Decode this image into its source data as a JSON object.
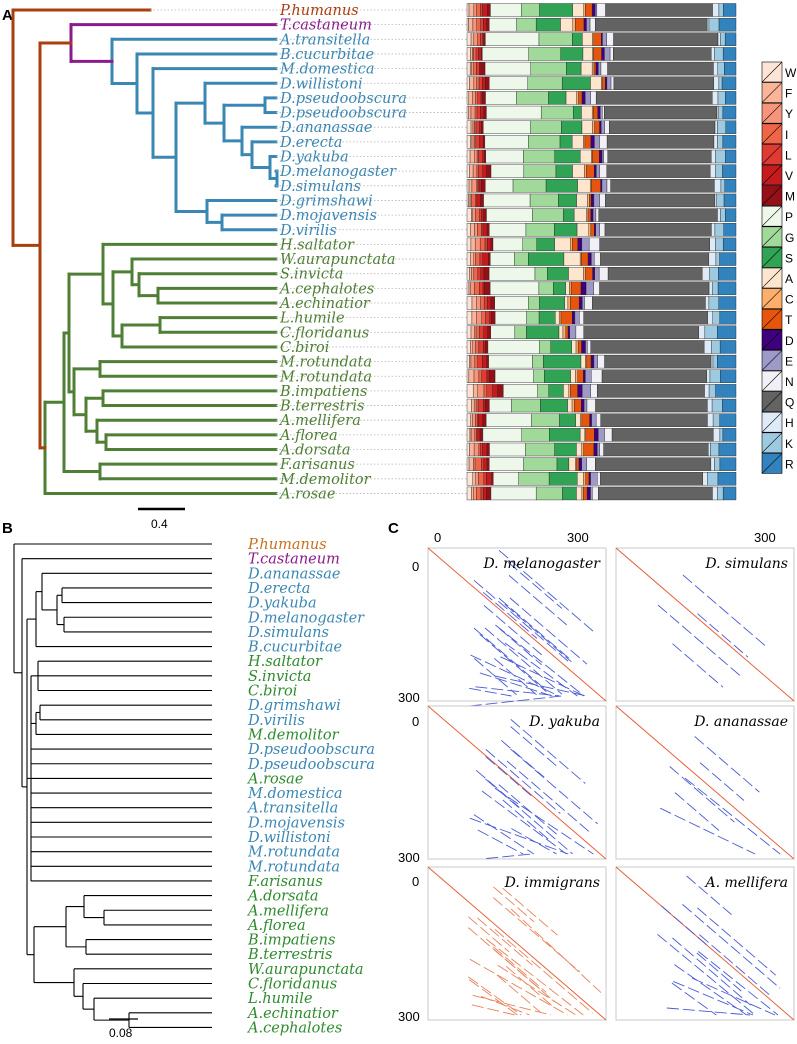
{
  "panels": {
    "a": "A",
    "b": "B",
    "c": "C"
  },
  "colors": {
    "orange": "#a93f0f",
    "purple": "#8a1b8a",
    "blue": "#3b87b4",
    "green": "#4f7f35",
    "greenB": "#2e8b2e",
    "orangeB": "#c8701f"
  },
  "panel_a": {
    "species": [
      {
        "name": "P.humanus",
        "grp": "o"
      },
      {
        "name": "T.castaneum",
        "grp": "p"
      },
      {
        "name": "A.transitella",
        "grp": "b"
      },
      {
        "name": "B.cucurbitae",
        "grp": "b"
      },
      {
        "name": "M.domestica",
        "grp": "b"
      },
      {
        "name": "D.willistoni",
        "grp": "b"
      },
      {
        "name": "D.pseudoobscura",
        "grp": "b"
      },
      {
        "name": "D.pseudoobscura",
        "grp": "b"
      },
      {
        "name": "D.ananassae",
        "grp": "b"
      },
      {
        "name": "D.erecta",
        "grp": "b"
      },
      {
        "name": "D.yakuba",
        "grp": "b"
      },
      {
        "name": "D.melanogaster",
        "grp": "b"
      },
      {
        "name": "D.simulans",
        "grp": "b"
      },
      {
        "name": "D.grimshawi",
        "grp": "b"
      },
      {
        "name": "D.mojavensis",
        "grp": "b"
      },
      {
        "name": "D.virilis",
        "grp": "b"
      },
      {
        "name": "H.saltator",
        "grp": "g"
      },
      {
        "name": "W.aurapunctata",
        "grp": "g"
      },
      {
        "name": "S.invicta",
        "grp": "g"
      },
      {
        "name": "A.cephalotes",
        "grp": "g"
      },
      {
        "name": "A.echinatior",
        "grp": "g"
      },
      {
        "name": "L.humile",
        "grp": "g"
      },
      {
        "name": "C.floridanus",
        "grp": "g"
      },
      {
        "name": "C.biroi",
        "grp": "g"
      },
      {
        "name": "M.rotundata",
        "grp": "g"
      },
      {
        "name": "M.rotundata",
        "grp": "g"
      },
      {
        "name": "B.impatiens",
        "grp": "g"
      },
      {
        "name": "B.terrestris",
        "grp": "g"
      },
      {
        "name": "A.mellifera",
        "grp": "g"
      },
      {
        "name": "A.florea",
        "grp": "g"
      },
      {
        "name": "A.dorsata",
        "grp": "g"
      },
      {
        "name": "F.arisanus",
        "grp": "g"
      },
      {
        "name": "M.demolitor",
        "grp": "g"
      },
      {
        "name": "A.rosae",
        "grp": "g"
      }
    ],
    "scale_label": "0.4",
    "legend": [
      {
        "aa": "W",
        "color": "#fde4d6"
      },
      {
        "aa": "F",
        "color": "#f9b49a"
      },
      {
        "aa": "Y",
        "color": "#f6957b"
      },
      {
        "aa": "I",
        "color": "#ef6548"
      },
      {
        "aa": "L",
        "color": "#e03b32"
      },
      {
        "aa": "V",
        "color": "#c61a1d"
      },
      {
        "aa": "M",
        "color": "#950f16"
      },
      {
        "aa": "P",
        "color": "#edf7ea"
      },
      {
        "aa": "G",
        "color": "#a1d99b"
      },
      {
        "aa": "S",
        "color": "#31a354"
      },
      {
        "aa": "A",
        "color": "#fee6ce"
      },
      {
        "aa": "C",
        "color": "#fdae6b"
      },
      {
        "aa": "T",
        "color": "#e6550d"
      },
      {
        "aa": "D",
        "color": "#3f007d"
      },
      {
        "aa": "E",
        "color": "#9e9ac8"
      },
      {
        "aa": "N",
        "color": "#f2f0f7"
      },
      {
        "aa": "Q",
        "color": "#636363"
      },
      {
        "aa": "H",
        "color": "#deebf7"
      },
      {
        "aa": "K",
        "color": "#9ecae1"
      },
      {
        "aa": "R",
        "color": "#3182bd"
      }
    ]
  },
  "panel_b": {
    "species": [
      {
        "name": "P.humanus",
        "grp": "o"
      },
      {
        "name": "T.castaneum",
        "grp": "p"
      },
      {
        "name": "D.ananassae",
        "grp": "b"
      },
      {
        "name": "D.erecta",
        "grp": "b"
      },
      {
        "name": "D.yakuba",
        "grp": "b"
      },
      {
        "name": "D.melanogaster",
        "grp": "b"
      },
      {
        "name": "D.simulans",
        "grp": "b"
      },
      {
        "name": "B.cucurbitae",
        "grp": "b"
      },
      {
        "name": "H.saltator",
        "grp": "g"
      },
      {
        "name": "S.invicta",
        "grp": "g"
      },
      {
        "name": "C.biroi",
        "grp": "g"
      },
      {
        "name": "D.grimshawi",
        "grp": "b"
      },
      {
        "name": "D.virilis",
        "grp": "b"
      },
      {
        "name": "M.demolitor",
        "grp": "g"
      },
      {
        "name": "D.pseudoobscura",
        "grp": "b"
      },
      {
        "name": "D.pseudoobscura",
        "grp": "b"
      },
      {
        "name": "A.rosae",
        "grp": "g"
      },
      {
        "name": "M.domestica",
        "grp": "b"
      },
      {
        "name": "A.transitella",
        "grp": "b"
      },
      {
        "name": "D.mojavensis",
        "grp": "b"
      },
      {
        "name": "D.willistoni",
        "grp": "b"
      },
      {
        "name": "M.rotundata",
        "grp": "b"
      },
      {
        "name": "M.rotundata",
        "grp": "b"
      },
      {
        "name": "F.arisanus",
        "grp": "g"
      },
      {
        "name": "A.dorsata",
        "grp": "g"
      },
      {
        "name": "A.mellifera",
        "grp": "g"
      },
      {
        "name": "A.florea",
        "grp": "g"
      },
      {
        "name": "B.impatiens",
        "grp": "g"
      },
      {
        "name": "B.terrestris",
        "grp": "g"
      },
      {
        "name": "W.aurapunctata",
        "grp": "g"
      },
      {
        "name": "C.floridanus",
        "grp": "g"
      },
      {
        "name": "L.humile",
        "grp": "g"
      },
      {
        "name": "A.echinatior",
        "grp": "g"
      },
      {
        "name": "A.cephalotes",
        "grp": "g"
      }
    ],
    "scale_label": "0.08"
  },
  "panel_c": {
    "axis_ticks": [
      "0",
      "300"
    ],
    "plots": [
      {
        "title": "D. melanogaster",
        "repeats": 12,
        "color": "#4a5bd4"
      },
      {
        "title": "D. simulans",
        "repeats": 2,
        "color": "#4a5bd4"
      },
      {
        "title": "D. yakuba",
        "repeats": 9,
        "color": "#4a5bd4"
      },
      {
        "title": "D. ananassae",
        "repeats": 3,
        "color": "#4a5bd4"
      },
      {
        "title": "D. immigrans",
        "repeats": 10,
        "color": "#e8825a"
      },
      {
        "title": "A. mellifera",
        "repeats": 7,
        "color": "#4a5bd4"
      }
    ]
  }
}
